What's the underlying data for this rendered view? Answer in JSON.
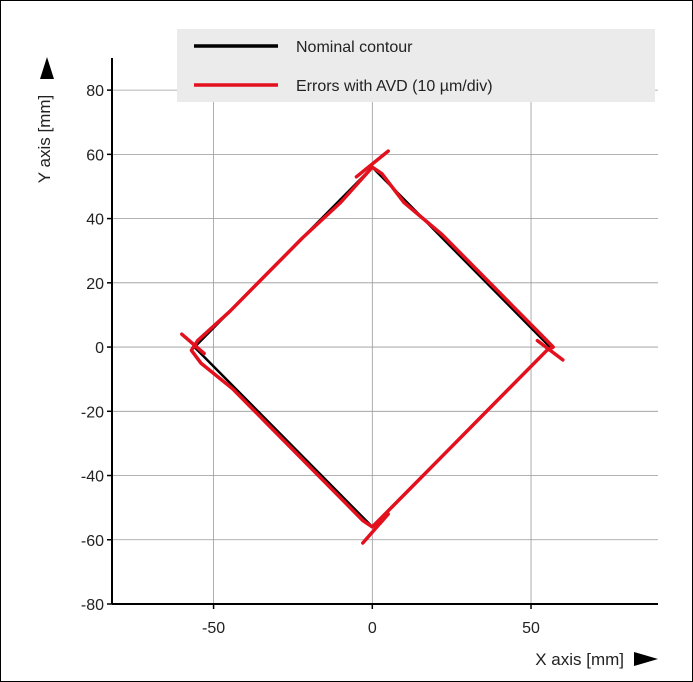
{
  "chart_data": {
    "type": "line",
    "title": "",
    "xlabel": "X axis [mm]",
    "ylabel": "Y axis [mm]",
    "xlim": [
      -82,
      90
    ],
    "ylim": [
      -80,
      90
    ],
    "xticks": [
      -50,
      0,
      50
    ],
    "yticks": [
      -80,
      -60,
      -40,
      -20,
      0,
      20,
      40,
      60,
      80
    ],
    "grid": true,
    "legend_position": "top-right",
    "series": [
      {
        "name": "Nominal contour",
        "color": "#000000",
        "x": [
          0,
          56,
          0,
          -56,
          0
        ],
        "y": [
          56,
          0,
          -56,
          0,
          56
        ]
      },
      {
        "name": "Errors with AVD (10 µm/div)",
        "color": "#e3101e",
        "x": [
          0,
          -10,
          -22,
          -34,
          -45,
          -55,
          -57,
          -54,
          -44,
          -33,
          -22,
          -11,
          -3,
          0,
          11,
          22,
          33,
          44,
          55,
          57,
          54,
          44,
          33,
          22,
          10,
          3,
          0
        ],
        "y": [
          56,
          45,
          34,
          22,
          11,
          2,
          -1,
          -5,
          -13,
          -24,
          -35,
          -46,
          -54,
          -56,
          -45,
          -34,
          -23,
          -12,
          -1,
          0,
          3,
          13,
          24,
          35,
          45,
          54,
          56
        ]
      },
      {
        "name": "",
        "color": "#e3101e",
        "x": [
          -60,
          -53
        ],
        "y": [
          4,
          -2
        ]
      },
      {
        "name": "",
        "color": "#e3101e",
        "x": [
          5,
          -5
        ],
        "y": [
          61,
          53
        ]
      },
      {
        "name": "",
        "color": "#e3101e",
        "x": [
          60,
          52
        ],
        "y": [
          -4,
          2
        ]
      },
      {
        "name": "",
        "color": "#e3101e",
        "x": [
          -3,
          5
        ],
        "y": [
          -61,
          -52
        ]
      }
    ]
  }
}
